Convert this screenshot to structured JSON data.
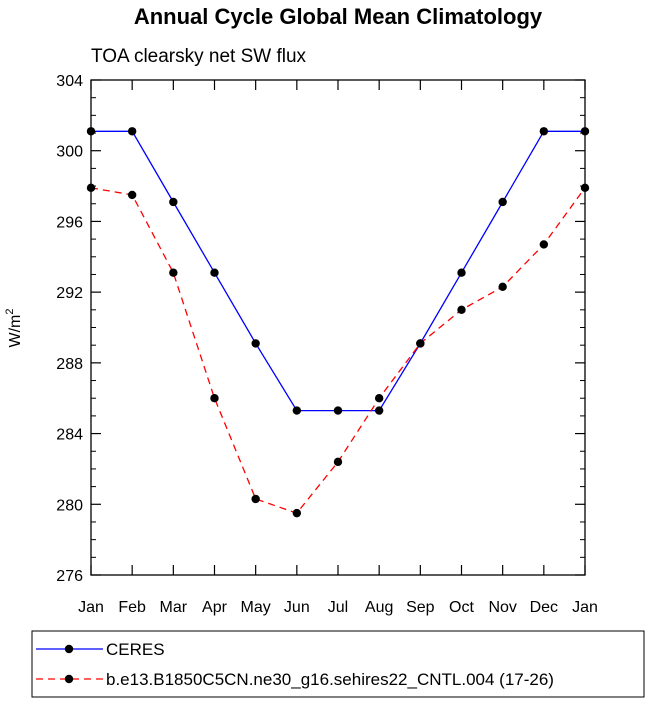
{
  "chart_data": {
    "type": "line",
    "title": "Annual Cycle Global Mean Climatology",
    "subtitle": "TOA clearsky net SW flux",
    "xlabel": "",
    "ylabel": "W/m",
    "ylabel_sup": "2",
    "categories": [
      "Jan",
      "Feb",
      "Mar",
      "Apr",
      "May",
      "Jun",
      "Jul",
      "Aug",
      "Sep",
      "Oct",
      "Nov",
      "Dec",
      "Jan"
    ],
    "ylim": [
      276,
      304
    ],
    "yticks": [
      276,
      280,
      284,
      288,
      292,
      296,
      300,
      304
    ],
    "yminor_step": 1,
    "grid": false,
    "legend_placement": "bottom",
    "series": [
      {
        "name": "CERES",
        "color": "#0000ff",
        "dash": "solid",
        "marker": "filled-circle",
        "values": [
          301.1,
          301.1,
          297.1,
          293.1,
          289.1,
          285.3,
          285.3,
          285.3,
          289.1,
          293.1,
          297.1,
          301.1,
          301.1
        ]
      },
      {
        "name": "b.e13.B1850C5CN.ne30_g16.sehires22_CNTL.004 (17-26)",
        "color": "#ff0000",
        "dash": "dashed",
        "marker": "filled-circle",
        "values": [
          297.9,
          297.5,
          293.1,
          286.0,
          280.3,
          279.5,
          282.4,
          286.0,
          289.1,
          291.0,
          292.3,
          294.7,
          297.9
        ]
      }
    ]
  }
}
